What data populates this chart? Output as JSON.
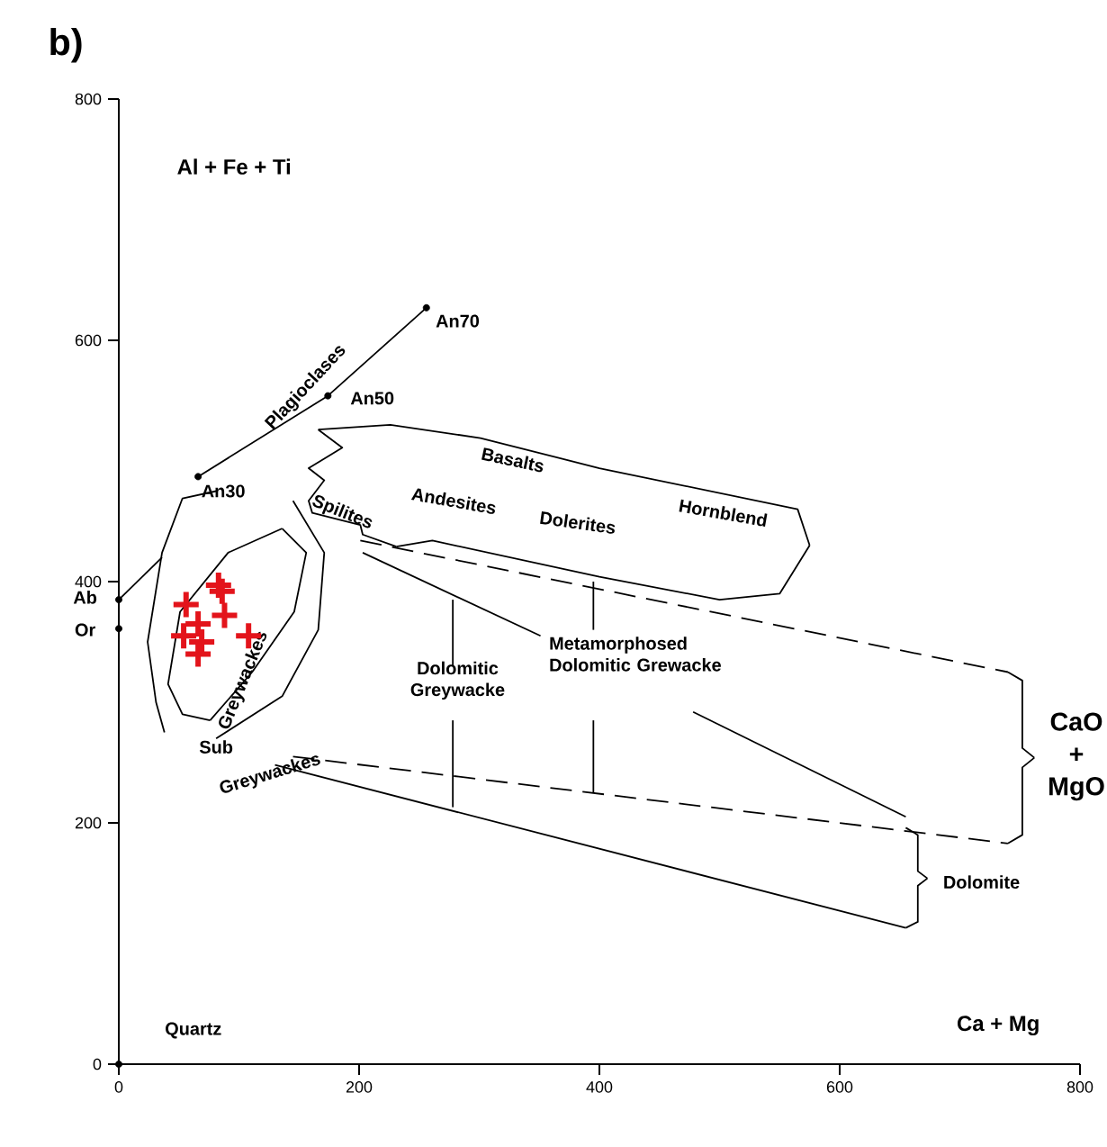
{
  "chart_data": {
    "type": "scatter",
    "title": "b)",
    "xlabel": "Ca + Mg",
    "ylabel": "Al + Fe + Ti",
    "xlim": [
      0,
      800
    ],
    "ylim": [
      0,
      800
    ],
    "xticks": [
      0,
      200,
      400,
      600,
      800
    ],
    "yticks": [
      0,
      200,
      400,
      600,
      800
    ],
    "grid": false,
    "series": [
      {
        "type": "line",
        "color": "#000000",
        "marker": "none",
        "line_style": "solid",
        "x": [
          0,
          36
        ],
        "values": [
          385,
          420
        ]
      },
      {
        "type": "line",
        "color": "#000000",
        "marker": "none",
        "line_style": "solid",
        "x": [
          66,
          174,
          256
        ],
        "values": [
          487,
          554,
          627
        ]
      },
      {
        "type": "line",
        "color": "#000000",
        "marker": "none",
        "line_style": "solid",
        "x": [
          81,
          53,
          36,
          24,
          31,
          38
        ],
        "values": [
          475,
          469,
          424,
          350,
          300,
          275
        ]
      },
      {
        "type": "line",
        "color": "#000000",
        "marker": "none",
        "line_style": "solid",
        "x": [
          145,
          171,
          166,
          136,
          81
        ],
        "values": [
          467,
          424,
          360,
          305,
          270
        ]
      },
      {
        "type": "line",
        "color": "#000000",
        "marker": "none",
        "line_style": "solid",
        "x": [
          136,
          91,
          51,
          41,
          53,
          76
        ],
        "values": [
          444,
          424,
          375,
          315,
          290,
          285
        ]
      },
      {
        "type": "line",
        "color": "#000000",
        "marker": "none",
        "line_style": "solid",
        "x": [
          76,
          111,
          146,
          156,
          136
        ],
        "values": [
          285,
          325,
          375,
          424,
          444
        ]
      },
      {
        "type": "line",
        "color": "#000000",
        "marker": "none",
        "line_style": "solid",
        "x": [
          166,
          186,
          158,
          171,
          158,
          161,
          201,
          203,
          231
        ],
        "values": [
          526,
          511,
          494,
          484,
          467,
          457,
          447,
          439,
          429
        ]
      },
      {
        "type": "line",
        "color": "#000000",
        "marker": "none",
        "line_style": "solid",
        "x": [
          231,
          261,
          400,
          500,
          550,
          575
        ],
        "values": [
          429,
          434,
          404,
          385,
          390,
          430
        ]
      },
      {
        "type": "line",
        "color": "#000000",
        "marker": "none",
        "line_style": "solid",
        "x": [
          575,
          565,
          400,
          301,
          226,
          166
        ],
        "values": [
          430,
          460,
          494,
          519,
          530,
          526
        ]
      },
      {
        "type": "line",
        "color": "#000000",
        "marker": "none",
        "line_style": "dashed",
        "x": [
          201,
          740
        ],
        "values": [
          434,
          325
        ]
      },
      {
        "type": "line",
        "color": "#000000",
        "marker": "none",
        "line_style": "dashed",
        "x": [
          145,
          740
        ],
        "values": [
          255,
          183
        ]
      },
      {
        "type": "line",
        "color": "#000000",
        "marker": "none",
        "line_style": "solid",
        "x": [
          130,
          655
        ],
        "values": [
          248,
          113
        ]
      },
      {
        "type": "line",
        "color": "#000000",
        "marker": "none",
        "line_style": "solid",
        "x": [
          203,
          351
        ],
        "values": [
          424,
          355
        ]
      },
      {
        "type": "line",
        "color": "#000000",
        "marker": "none",
        "line_style": "solid",
        "x": [
          478,
          655
        ],
        "values": [
          292,
          205
        ]
      },
      {
        "type": "line",
        "color": "#000000",
        "marker": "none",
        "line_style": "solid",
        "x": [
          278,
          278
        ],
        "values": [
          385,
          330
        ]
      },
      {
        "type": "line",
        "color": "#000000",
        "marker": "none",
        "line_style": "solid",
        "x": [
          278,
          278
        ],
        "values": [
          285,
          213
        ]
      },
      {
        "type": "line",
        "color": "#000000",
        "marker": "none",
        "line_style": "solid",
        "x": [
          395,
          395
        ],
        "values": [
          400,
          360
        ]
      },
      {
        "type": "line",
        "color": "#000000",
        "marker": "none",
        "line_style": "solid",
        "x": [
          395,
          395
        ],
        "values": [
          285,
          225
        ]
      },
      {
        "type": "line",
        "color": "#000000",
        "marker": "none",
        "line_style": "solid",
        "x": [
          740,
          752,
          752,
          762
        ],
        "values": [
          325,
          318,
          262,
          254
        ]
      },
      {
        "type": "line",
        "color": "#000000",
        "marker": "none",
        "line_style": "solid",
        "x": [
          762,
          752,
          752,
          740
        ],
        "values": [
          254,
          246,
          190,
          183
        ]
      },
      {
        "type": "line",
        "color": "#000000",
        "marker": "none",
        "line_style": "solid",
        "x": [
          655,
          665,
          665,
          673
        ],
        "values": [
          196,
          190,
          160,
          154
        ]
      },
      {
        "type": "line",
        "color": "#000000",
        "marker": "none",
        "line_style": "solid",
        "x": [
          673,
          665,
          665,
          655
        ],
        "values": [
          154,
          148,
          118,
          113
        ]
      },
      {
        "color": "#000000",
        "marker": "circle",
        "x": [
          0,
          0,
          0,
          66,
          174,
          256
        ],
        "values": [
          0,
          385,
          361,
          487,
          554,
          627
        ]
      },
      {
        "color": "#e3141b",
        "marker": "cross",
        "x": [
          56,
          83,
          86,
          88,
          66,
          54,
          69,
          66,
          108
        ],
        "values": [
          381,
          397,
          392,
          372,
          365,
          355,
          350,
          340,
          355
        ]
      }
    ],
    "annotations": [
      "Quartz",
      "Ab",
      "Or",
      "An30",
      "An50",
      "An70",
      "Plagioclases",
      "Spilites",
      "Basalts",
      "Andesites",
      "Dolerites",
      "Hornblend",
      "Greywackes",
      "Sub",
      "Greywackes",
      "Dolomitic Greywacke",
      "Metamorphosed Dolomitic Grewacke",
      "CaO + MgO",
      "Dolomite"
    ]
  }
}
